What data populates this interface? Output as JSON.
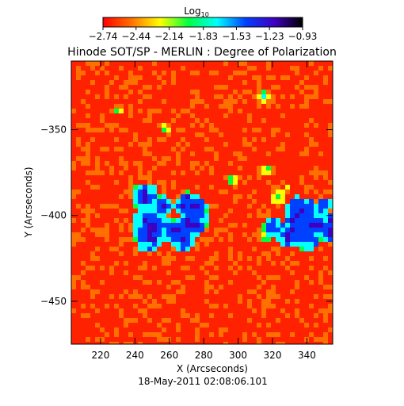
{
  "colorbar": {
    "label_prefix": "Log",
    "label_sub": "10",
    "ticks": [
      "-2.74",
      "-2.44",
      "-2.14",
      "-1.83",
      "-1.53",
      "-1.23",
      "-0.93"
    ],
    "range": [
      -2.74,
      -0.93
    ],
    "colors": [
      "#ff0000",
      "#ff7000",
      "#ffff00",
      "#00ff40",
      "#00ffff",
      "#0040ff",
      "#4000c0",
      "#000000"
    ]
  },
  "chart_data": {
    "type": "heatmap",
    "title": "Hinode SOT/SP - MERLIN : Degree of Polarization",
    "xlabel": "X (Arcseconds)",
    "ylabel": "Y (Arcseconds)",
    "xlim": [
      203,
      355
    ],
    "ylim": [
      -475,
      -310
    ],
    "xticks": [
      220,
      240,
      260,
      280,
      300,
      320,
      340
    ],
    "yticks": [
      -350,
      -400,
      -450
    ],
    "value_range": [
      -2.74,
      -0.93
    ],
    "colormap": "rainbow (red = low, yellow, green, blue, black = high)",
    "background_level": -2.7,
    "features": [
      {
        "description": "strong polarization band",
        "x_range": [
          240,
          275
        ],
        "y_range": [
          -420,
          -385
        ],
        "level": -1.2
      },
      {
        "description": "strong polarization patch",
        "x_range": [
          320,
          355
        ],
        "y_range": [
          -415,
          -385
        ],
        "level": -1.2
      },
      {
        "description": "moderate patches",
        "x_range": [
          220,
          340
        ],
        "y_range": [
          -470,
          -330
        ],
        "level": -1.8
      }
    ]
  },
  "footer": {
    "timestamp": "18-May-2011 02:08:06.101"
  }
}
